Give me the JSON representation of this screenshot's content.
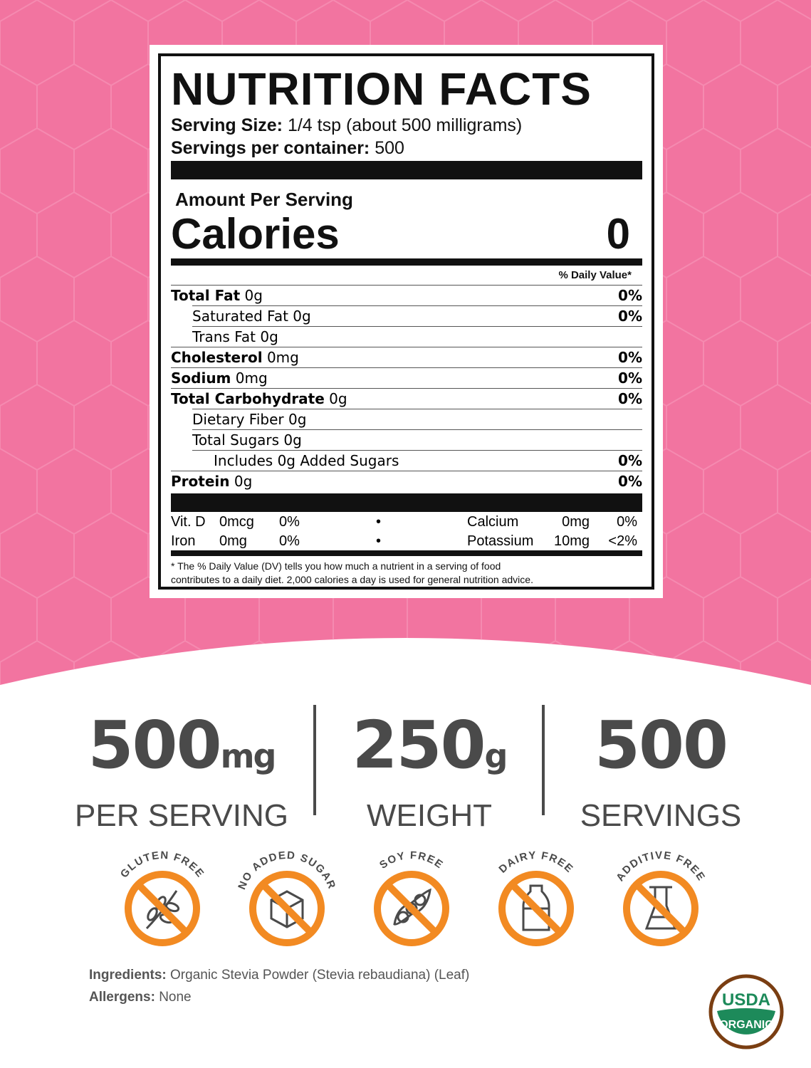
{
  "colors": {
    "background_pink": "#f274a0",
    "badge_orange": "#f28a22",
    "text_gray": "#4a4a4a",
    "usda_green": "#1d8a5a",
    "usda_brown": "#7a3e12"
  },
  "label": {
    "title": "NUTRITION FACTS",
    "serving_size_label": "Serving Size:",
    "serving_size_value": "1/4 tsp (about 500 milligrams)",
    "servings_label": "Servings per container:",
    "servings_value": "500",
    "amount_per_serving": "Amount Per Serving",
    "calories_label": "Calories",
    "calories_value": "0",
    "dv_header": "% Daily Value*",
    "rows": [
      {
        "name": "Total Fat",
        "amount": "0g",
        "dv": "0%",
        "indent": 0,
        "bold": true
      },
      {
        "name": "Saturated Fat",
        "amount": "0g",
        "dv": "0%",
        "indent": 1,
        "bold": false
      },
      {
        "name": "Trans Fat",
        "amount": "0g",
        "dv": "",
        "indent": 1,
        "bold": false
      },
      {
        "name": "Cholesterol",
        "amount": "0mg",
        "dv": "0%",
        "indent": 0,
        "bold": true
      },
      {
        "name": "Sodium",
        "amount": "0mg",
        "dv": "0%",
        "indent": 0,
        "bold": true
      },
      {
        "name": "Total Carbohydrate",
        "amount": "0g",
        "dv": "0%",
        "indent": 0,
        "bold": true
      },
      {
        "name": "Dietary Fiber",
        "amount": "0g",
        "dv": "",
        "indent": 1,
        "bold": false
      },
      {
        "name": "Total Sugars",
        "amount": "0g",
        "dv": "",
        "indent": 1,
        "bold": false
      },
      {
        "name": "Includes 0g Added Sugars",
        "amount": "",
        "dv": "0%",
        "indent": 2,
        "bold": false
      },
      {
        "name": "Protein",
        "amount": "0g",
        "dv": "0%",
        "indent": 0,
        "bold": true
      }
    ],
    "vitamins": [
      {
        "name": "Vit. D",
        "amount": "0mcg",
        "dv": "0%",
        "name2": "Calcium",
        "amount2": "0mg",
        "dv2": "0%"
      },
      {
        "name": "Iron",
        "amount": "0mg",
        "dv": "0%",
        "name2": "Potassium",
        "amount2": "10mg",
        "dv2": "<2%"
      }
    ],
    "bullet": "•",
    "footnote1": "* The % Daily Value (DV) tells you how much a nutrient in a serving of food",
    "footnote2": "contributes to a daily diet. 2,000 calories a day is used for general nutrition advice."
  },
  "stats": [
    {
      "value": "500",
      "unit": "mg",
      "label": "PER SERVING"
    },
    {
      "value": "250",
      "unit": "g",
      "label": "WEIGHT"
    },
    {
      "value": "500",
      "unit": "",
      "label": "SERVINGS"
    }
  ],
  "badges": [
    {
      "label": "GLUTEN FREE",
      "icon": "wheat-icon"
    },
    {
      "label": "NO ADDED SUGAR",
      "icon": "sugar-cube-icon"
    },
    {
      "label": "SOY FREE",
      "icon": "soybean-icon"
    },
    {
      "label": "DAIRY FREE",
      "icon": "milk-bottle-icon"
    },
    {
      "label": "ADDITIVE FREE",
      "icon": "flask-icon"
    }
  ],
  "ingredients": {
    "label": "Ingredients:",
    "value": "Organic Stevia Powder (Stevia rebaudiana) (Leaf)"
  },
  "allergens": {
    "label": "Allergens:",
    "value": "None"
  },
  "usda": {
    "top": "USDA",
    "bottom": "ORGANIC"
  }
}
